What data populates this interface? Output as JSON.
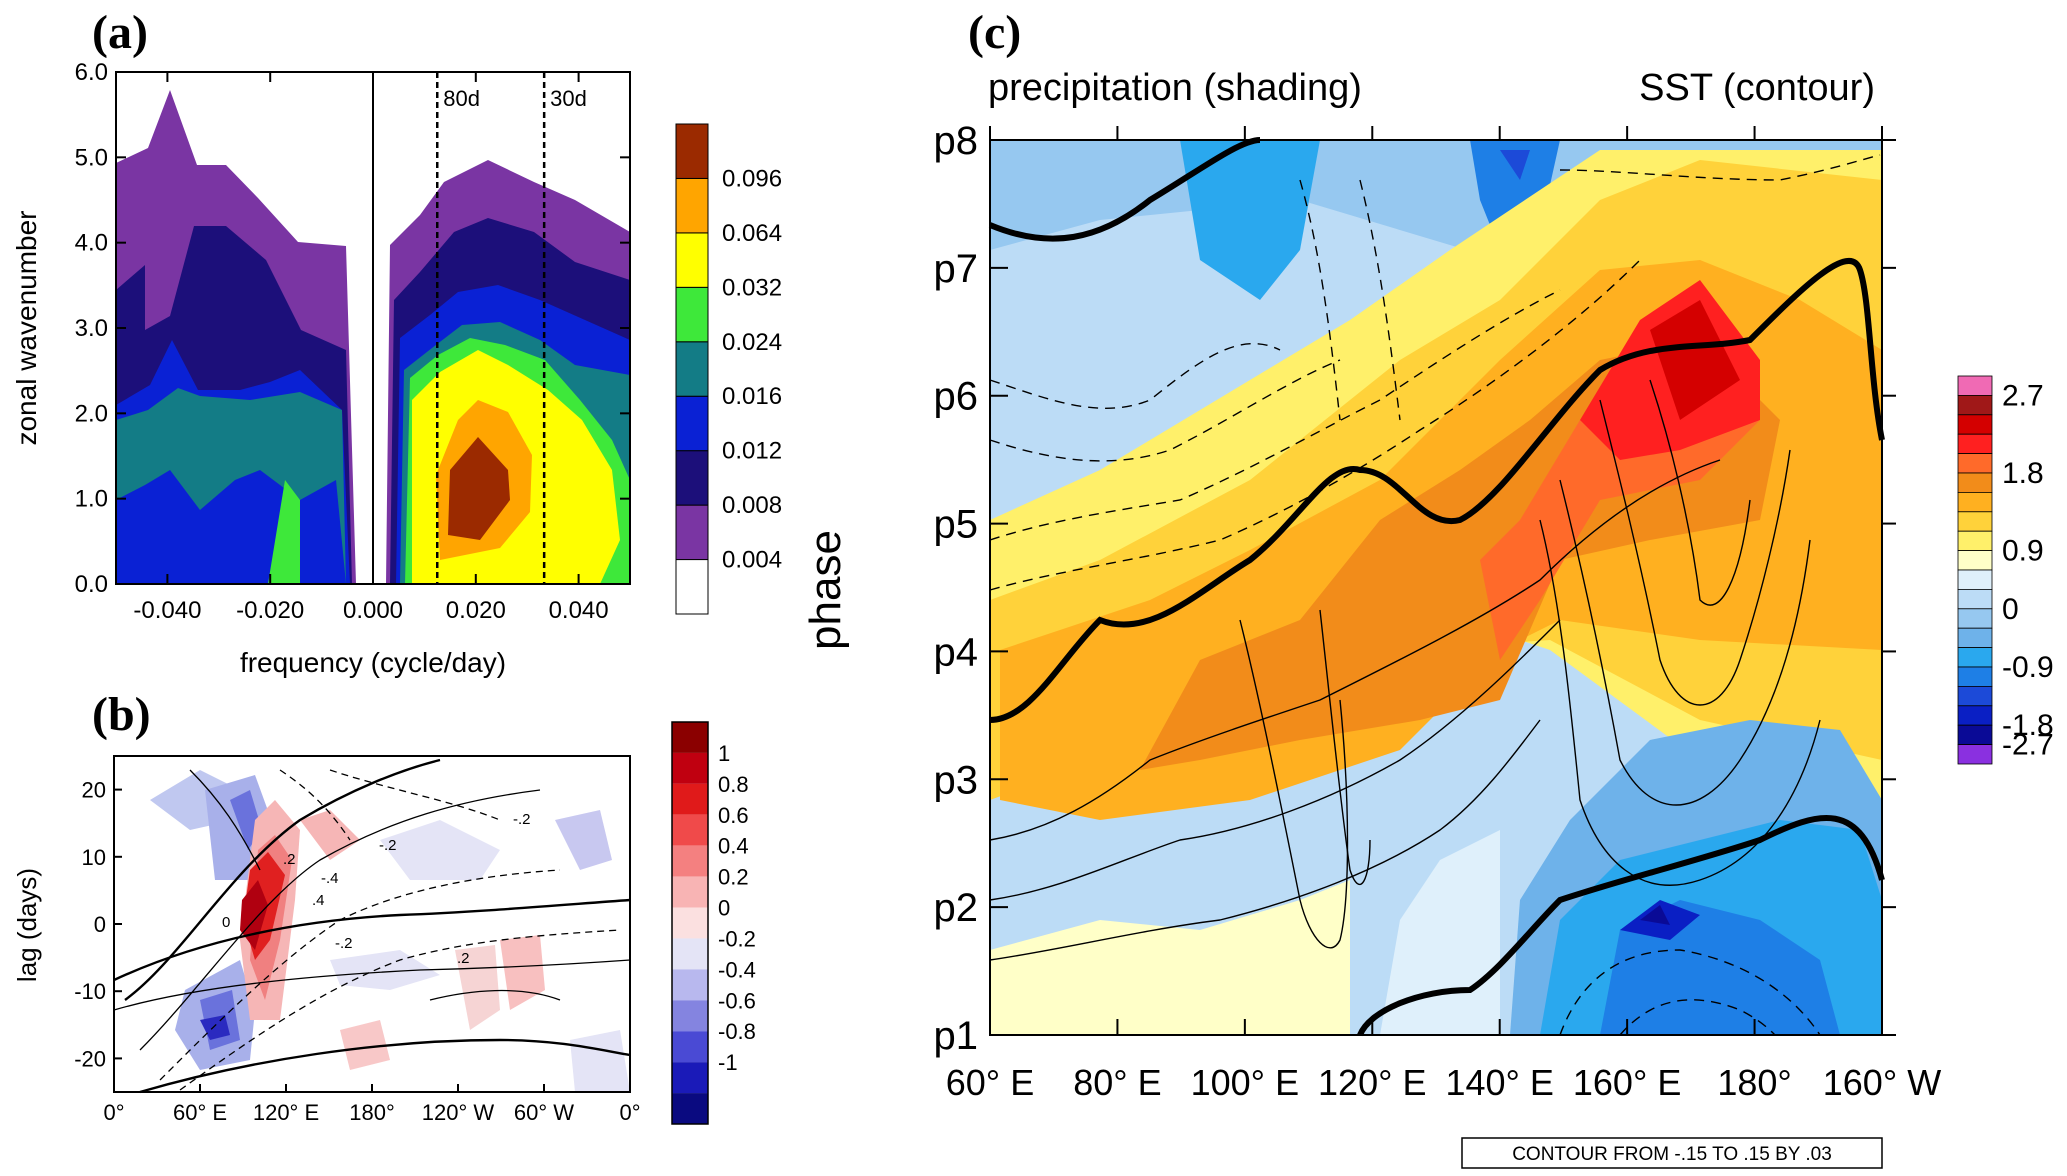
{
  "panels": {
    "a_label": "(a)",
    "b_label": "(b)",
    "c_label": "(c)"
  },
  "chart_data": [
    {
      "type": "heatmap",
      "panel": "(a)",
      "xlabel": "frequency (cycle/day)",
      "ylabel": "zonal wavenumber",
      "xlim": [
        -0.05,
        0.05
      ],
      "ylim": [
        0,
        6
      ],
      "x_ticks": [
        "-0.040",
        "-0.020",
        "0.000",
        "0.020",
        "0.040"
      ],
      "x_tick_values": [
        -0.04,
        -0.02,
        0.0,
        0.02,
        0.04
      ],
      "y_ticks": [
        "0.0",
        "1.0",
        "2.0",
        "3.0",
        "4.0",
        "5.0",
        "6.0"
      ],
      "y_tick_values": [
        0,
        1,
        2,
        3,
        4,
        5,
        6
      ],
      "reference_lines": [
        {
          "label": "80d",
          "x": 0.0125
        },
        {
          "label": "30d",
          "x": 0.0333
        }
      ],
      "colorbar": {
        "labels": [
          "0.004",
          "0.008",
          "0.012",
          "0.016",
          "0.024",
          "0.032",
          "0.064",
          "0.096"
        ],
        "colors": [
          "#ffffff",
          "#7a35a3",
          "#1c0f7a",
          "#0a21d4",
          "#137c86",
          "#3ee83a",
          "#ffff00",
          "#ffa500",
          "#9b2a00"
        ]
      },
      "peak": {
        "frequency": 0.02,
        "wavenumber": 1.0,
        "value": 0.096
      }
    },
    {
      "type": "heatmap",
      "panel": "(b)",
      "ylabel": "lag (days)",
      "x_ticks": [
        "0°",
        "60° E",
        "120° E",
        "180°",
        "120° W",
        "60° W",
        "0°"
      ],
      "x_tick_values": [
        0,
        60,
        120,
        180,
        240,
        300,
        360
      ],
      "y_ticks": [
        "-20",
        "-10",
        "0",
        "10",
        "20"
      ],
      "y_tick_values": [
        -20,
        -10,
        0,
        10,
        20
      ],
      "ylim": [
        -25,
        25
      ],
      "colorbar": {
        "labels": [
          "1",
          "0.8",
          "0.6",
          "0.4",
          "0.2",
          "0",
          "-0.2",
          "-0.4",
          "-0.6",
          "-0.8",
          "-1"
        ],
        "colors": [
          "#8b0000",
          "#c00010",
          "#e01a1a",
          "#f04a4a",
          "#f48080",
          "#f8b4b4",
          "#fbe0e0",
          "#e4e4f6",
          "#b8b8ee",
          "#8484e0",
          "#4a4ad4",
          "#1a1ab8",
          "#0a0a80"
        ]
      },
      "contour_labels": [
        "0",
        ".2",
        "-.2",
        ".4",
        "-.4"
      ]
    },
    {
      "type": "heatmap",
      "panel": "(c)",
      "top_left_label": "precipitation (shading)",
      "top_right_label": "SST (contour)",
      "ylabel": "phase",
      "x_ticks": [
        "60° E",
        "80° E",
        "100° E",
        "120° E",
        "140° E",
        "160° E",
        "180°",
        "160° W"
      ],
      "x_tick_values": [
        60,
        80,
        100,
        120,
        140,
        160,
        180,
        200
      ],
      "y_ticks": [
        "p1",
        "p2",
        "p3",
        "p4",
        "p5",
        "p6",
        "p7",
        "p8"
      ],
      "footer": "CONTOUR FROM -.15 TO .15 BY .03",
      "colorbar": {
        "labels": [
          "2.7",
          "1.8",
          "0.9",
          "0",
          "-0.9",
          "-1.8",
          "-2.7"
        ],
        "colors": [
          "#f06ab4",
          "#a01818",
          "#d40000",
          "#ff2020",
          "#ff6a2a",
          "#f28c1a",
          "#ffb020",
          "#ffd23a",
          "#fff06a",
          "#ffffc8",
          "#dff0fb",
          "#bcdcf6",
          "#96c8f0",
          "#6eb2ea",
          "#2aa8ee",
          "#1e7fe6",
          "#1c4ad8",
          "#0a1fc4",
          "#0a0a96",
          "#8a30e0"
        ]
      }
    }
  ]
}
